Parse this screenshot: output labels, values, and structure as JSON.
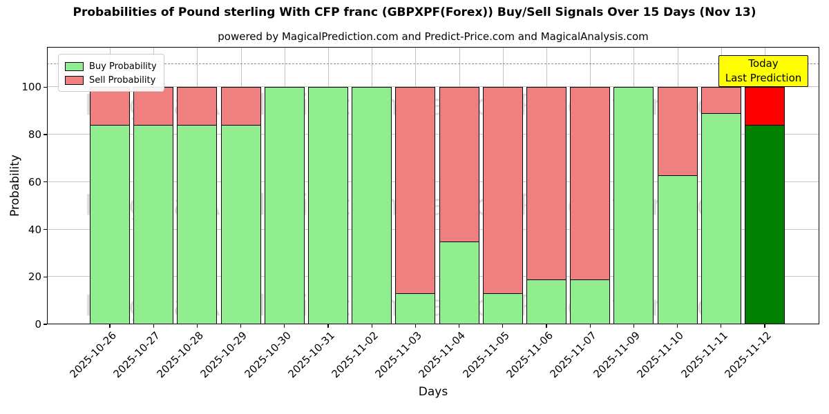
{
  "title": "Probabilities of Pound sterling With CFP franc (GBPXPF(Forex)) Buy/Sell Signals Over 15 Days (Nov 13)",
  "subtitle": "powered by MagicalPrediction.com and Predict-Price.com and MagicalAnalysis.com",
  "legend": {
    "buy_label": "Buy Probability",
    "sell_label": "Sell Probability"
  },
  "annotation": {
    "line1": "Today",
    "line2": "Last Prediction"
  },
  "watermarks": {
    "left": "MagicalAnalysis.com",
    "right": "MagicalPrediction.com"
  },
  "colors": {
    "buy": "#90ee90",
    "sell": "#f08080",
    "today_buy": "#008000",
    "today_sell": "#ff0000",
    "bar_edge": "#000000",
    "annotation_bg": "#ffff00",
    "grid": "#b0b0b0",
    "dashed_line": "#8a8a8a"
  },
  "chart_data": {
    "type": "bar",
    "stacked": true,
    "title": "Probabilities of Pound sterling With CFP franc (GBPXPF(Forex)) Buy/Sell Signals Over 15 Days (Nov 13)",
    "xlabel": "Days",
    "ylabel": "Probability",
    "categories": [
      "2025-10-26",
      "2025-10-27",
      "2025-10-28",
      "2025-10-29",
      "2025-10-30",
      "2025-10-31",
      "2025-11-02",
      "2025-11-03",
      "2025-11-04",
      "2025-11-05",
      "2025-11-06",
      "2025-11-07",
      "2025-11-09",
      "2025-11-10",
      "2025-11-11",
      "2025-11-12"
    ],
    "series": [
      {
        "name": "Buy Probability",
        "values": [
          84,
          84,
          84,
          84,
          100,
          100,
          100,
          13,
          35,
          13,
          19,
          19,
          100,
          63,
          89,
          84
        ]
      },
      {
        "name": "Sell Probability",
        "values": [
          16,
          16,
          16,
          16,
          0,
          0,
          0,
          87,
          65,
          87,
          81,
          81,
          0,
          37,
          11,
          16
        ]
      }
    ],
    "yticks": [
      0,
      20,
      40,
      60,
      80,
      100
    ],
    "ylim": [
      0,
      117
    ],
    "dashed_line_y": 110,
    "today_index": 15,
    "grid": true,
    "legend_position": "upper left"
  }
}
